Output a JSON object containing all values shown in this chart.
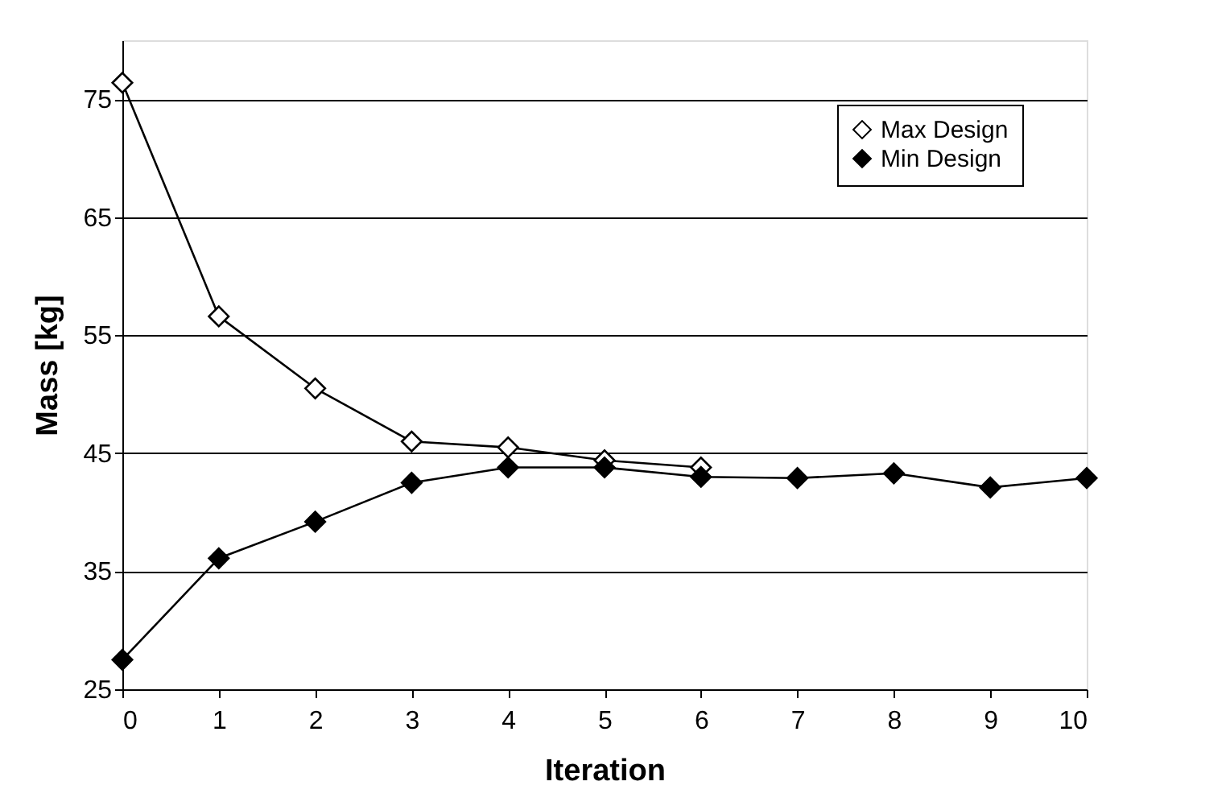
{
  "chart_data": {
    "type": "line",
    "xlabel": "Iteration",
    "ylabel": "Mass [kg]",
    "x": [
      0,
      1,
      2,
      3,
      4,
      5,
      6,
      7,
      8,
      9,
      10
    ],
    "series": [
      {
        "name": "Max Design",
        "color": "#ffffff",
        "values": [
          76.4,
          56.6,
          50.5,
          46.0,
          45.5,
          44.4,
          43.8,
          null,
          null,
          null,
          null
        ]
      },
      {
        "name": "Min Design",
        "color": "#000000",
        "values": [
          27.5,
          36.1,
          39.2,
          42.5,
          43.8,
          43.8,
          43.0,
          42.9,
          43.3,
          42.1,
          42.9
        ]
      }
    ],
    "xlim": [
      0,
      10
    ],
    "xticks": [
      0,
      1,
      2,
      3,
      4,
      5,
      6,
      7,
      8,
      9,
      10
    ],
    "ylim": [
      25,
      80
    ],
    "yticks": [
      25,
      35,
      45,
      55,
      65,
      75
    ],
    "grid": "y",
    "legend": "top right",
    "marker": "diamond",
    "line_style": "solid"
  }
}
